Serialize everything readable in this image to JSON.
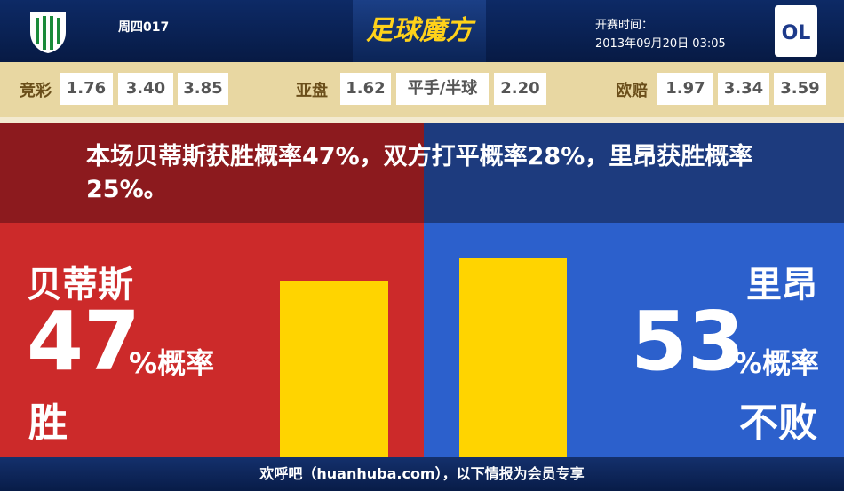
{
  "header": {
    "match": "周四017",
    "brand": "足球魔方",
    "kickoff_label": "开赛时间：",
    "kickoff_time": "2013年09月20日 03:05",
    "right_logo_text": "OL"
  },
  "odds": [
    {
      "label": "竞彩",
      "values": [
        "1.76",
        "3.40",
        "3.85"
      ]
    },
    {
      "label": "亚盘",
      "values": [
        "1.62",
        "平手/半球",
        "2.20"
      ]
    },
    {
      "label": "欧赔",
      "values": [
        "1.97",
        "3.34",
        "3.59"
      ]
    }
  ],
  "summary": "本场贝蒂斯获胜概率47%，双方打平概率28%，里昂获胜概率25%。",
  "left": {
    "team": "贝蒂斯",
    "value": 47,
    "unit": "%概率",
    "outcome": "胜"
  },
  "right": {
    "team": "里昂",
    "value": 53,
    "unit": "%概率",
    "outcome": "不败"
  },
  "footer": "欢呼吧（huanhuba.com），以下情报为会员专享"
}
